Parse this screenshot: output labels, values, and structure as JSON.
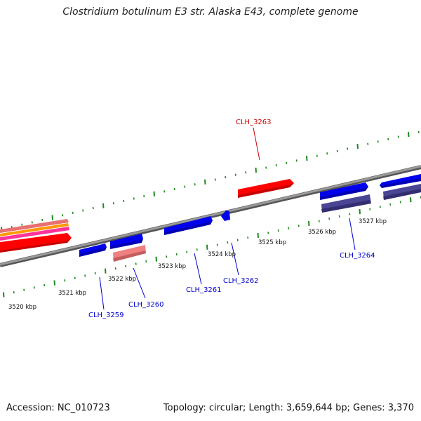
{
  "title": "Clostridium botulinum E3 str. Alaska E43, complete genome",
  "footer": {
    "accession": "Accession: NC_010723",
    "topology": "Topology: circular; Length: 3,659,644 bp; Genes: 3,370"
  },
  "colors": {
    "backbone": "#8c8c8c",
    "tick": "#1f8a1f",
    "highlight_label": "#cc0000",
    "label": "#0000cc",
    "gene_forward_highlight": "#ff0000",
    "gene_forward": "#0000ff",
    "gene_reverse": "#4a4594",
    "gene_reverse_pink": "#f08080"
  },
  "scale_labels": [
    {
      "pos": 3520,
      "text": "3520 kbp"
    },
    {
      "pos": 3521,
      "text": "3521 kbp"
    },
    {
      "pos": 3522,
      "text": "3522 kbp"
    },
    {
      "pos": 3523,
      "text": "3523 kbp"
    },
    {
      "pos": 3524,
      "text": "3524 kbp"
    },
    {
      "pos": 3525,
      "text": "3525 kbp"
    },
    {
      "pos": 3526,
      "text": "3526 kbp"
    },
    {
      "pos": 3527,
      "text": "3527 kbp"
    }
  ],
  "gene_labels": [
    {
      "id": "CLH_3263",
      "text": "CLH_3263",
      "highlight": true
    },
    {
      "id": "CLH_3259",
      "text": "CLH_3259",
      "highlight": false
    },
    {
      "id": "CLH_3260",
      "text": "CLH_3260",
      "highlight": false
    },
    {
      "id": "CLH_3261",
      "text": "CLH_3261",
      "highlight": false
    },
    {
      "id": "CLH_3262",
      "text": "CLH_3262",
      "highlight": false
    },
    {
      "id": "CLH_3264",
      "text": "CLH_3264",
      "highlight": false
    }
  ]
}
